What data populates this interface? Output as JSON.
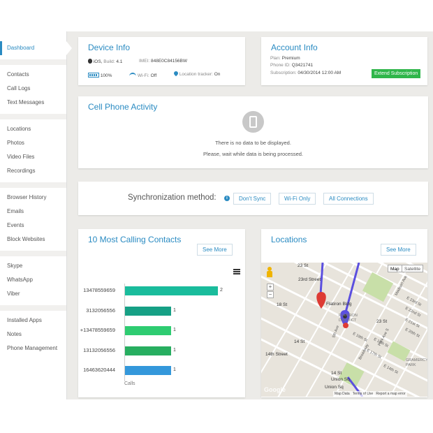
{
  "sidebar": {
    "groups": [
      [
        "Dashboard"
      ],
      [
        "Contacts",
        "Call Logs",
        "Text Messages"
      ],
      [
        "Locations",
        "Photos",
        "Video Files",
        "Recordings"
      ],
      [
        "Browser History",
        "Emails",
        "Events",
        "Block Websites"
      ],
      [
        "Skype",
        "WhatsApp",
        "Viber"
      ],
      [
        "Installed Apps",
        "Notes",
        "Phone Management"
      ]
    ]
  },
  "device": {
    "title": "Device Info",
    "os_label": "iOS",
    "build_label": "Build:",
    "build": "4.1",
    "imei_label": "IMEI:",
    "imei": "848E0C84156BW",
    "battery": "100%",
    "wifi_label": "Wi-Fi:",
    "wifi": "Off",
    "tracker_label": "Location tracker:",
    "tracker": "On"
  },
  "account": {
    "title": "Account Info",
    "plan_label": "Plan:",
    "plan": "Premium",
    "phone_label": "Phone ID:",
    "phone": "Q3421741",
    "sub_label": "Subscription:",
    "sub": "04/30/2014 12:00 AM",
    "extend": "Extend Subscription"
  },
  "activity": {
    "title": "Cell Phone Activity",
    "line1": "There is no data to be displayed.",
    "line2": "Please, wait while data is being processed."
  },
  "sync": {
    "label": "Synchronization method:",
    "options": [
      "Don't Sync",
      "Wi-Fi Only",
      "All Connections"
    ]
  },
  "calling": {
    "title": "10 Most Calling Contacts",
    "see_more": "See More",
    "axis": "Calls"
  },
  "locations": {
    "title": "Locations",
    "see_more": "See More",
    "map_btn": "Map",
    "sat_btn": "Satellite",
    "footer": [
      "Map Data",
      "Terms of Use",
      "Report a map error"
    ],
    "watermark": "Google",
    "labels": [
      "23 St",
      "23rd Street",
      "18 St",
      "Flatiron Bldg",
      "FLATIRON DISTRICT",
      "23 St",
      "5th Ave",
      "14 St",
      "14th Street",
      "14 St",
      "Union Sq",
      "Union Sq",
      "GRAMERCY PARK",
      "Madison Ave",
      "E 23rd St",
      "E 22nd St",
      "E 21st St",
      "E 20th St",
      "E 19th St",
      "E 18th St",
      "E 17th St",
      "Park Ave S",
      "Broadway",
      "E 14th St"
    ]
  },
  "chart_data": {
    "type": "bar",
    "orientation": "horizontal",
    "categories": [
      "13478559659",
      "3132056556",
      "+13478559659",
      "13132056556",
      "16463620444"
    ],
    "values": [
      2,
      1,
      1,
      1,
      1
    ],
    "colors": [
      "#1abc9c",
      "#16a085",
      "#2ecc71",
      "#27ae60",
      "#3498db"
    ],
    "xlabel": "Calls",
    "xlim": [
      0,
      2
    ]
  }
}
